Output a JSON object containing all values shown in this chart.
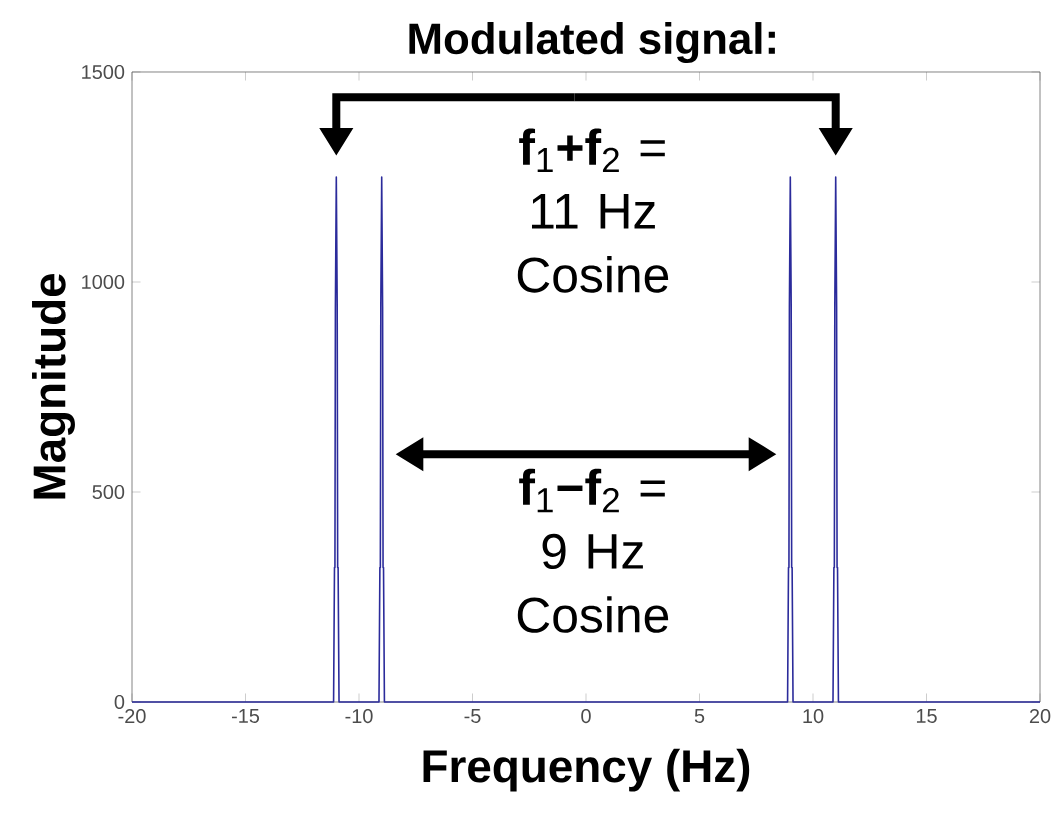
{
  "chart_data": {
    "type": "line",
    "title": "Modulated signal:",
    "xlabel": "Frequency (Hz)",
    "ylabel": "Magnitude",
    "x": [
      -20,
      -11.4,
      -11.12,
      -11.08,
      -11.06,
      -11.04,
      -11.0,
      -10.96,
      -10.94,
      -10.92,
      -10.88,
      -9.4,
      -9.12,
      -9.08,
      -9.06,
      -9.04,
      -9.0,
      -8.96,
      -8.94,
      -8.92,
      -8.88,
      8.88,
      8.92,
      8.94,
      8.96,
      9.0,
      9.04,
      9.06,
      9.08,
      9.12,
      9.4,
      10.88,
      10.92,
      10.94,
      10.96,
      11.0,
      11.04,
      11.06,
      11.08,
      11.12,
      11.4,
      20
    ],
    "series": [
      {
        "color": "#2b2b9b",
        "values": [
          0,
          0,
          0,
          320,
          320,
          940,
          1250,
          940,
          320,
          320,
          0,
          0,
          0,
          320,
          320,
          940,
          1250,
          940,
          320,
          320,
          0,
          0,
          320,
          320,
          940,
          1250,
          940,
          320,
          320,
          0,
          0,
          0,
          320,
          320,
          940,
          1250,
          940,
          320,
          320,
          0,
          0,
          0
        ]
      }
    ],
    "xlim": [
      -20,
      20
    ],
    "ylim": [
      0,
      1500
    ],
    "xticks": [
      -20,
      -15,
      -10,
      -5,
      0,
      5,
      10,
      15,
      20
    ],
    "yticks": [
      0,
      500,
      1000,
      1500
    ],
    "grid": false,
    "marker": "none",
    "line_style": "solid",
    "annotations": [
      "**f**$_{1}$**+f**$_{2}$ = 11 Hz Cosine",
      "**f**$_{1}$**−f**$_{2}$ = 9 Hz Cosine"
    ]
  }
}
